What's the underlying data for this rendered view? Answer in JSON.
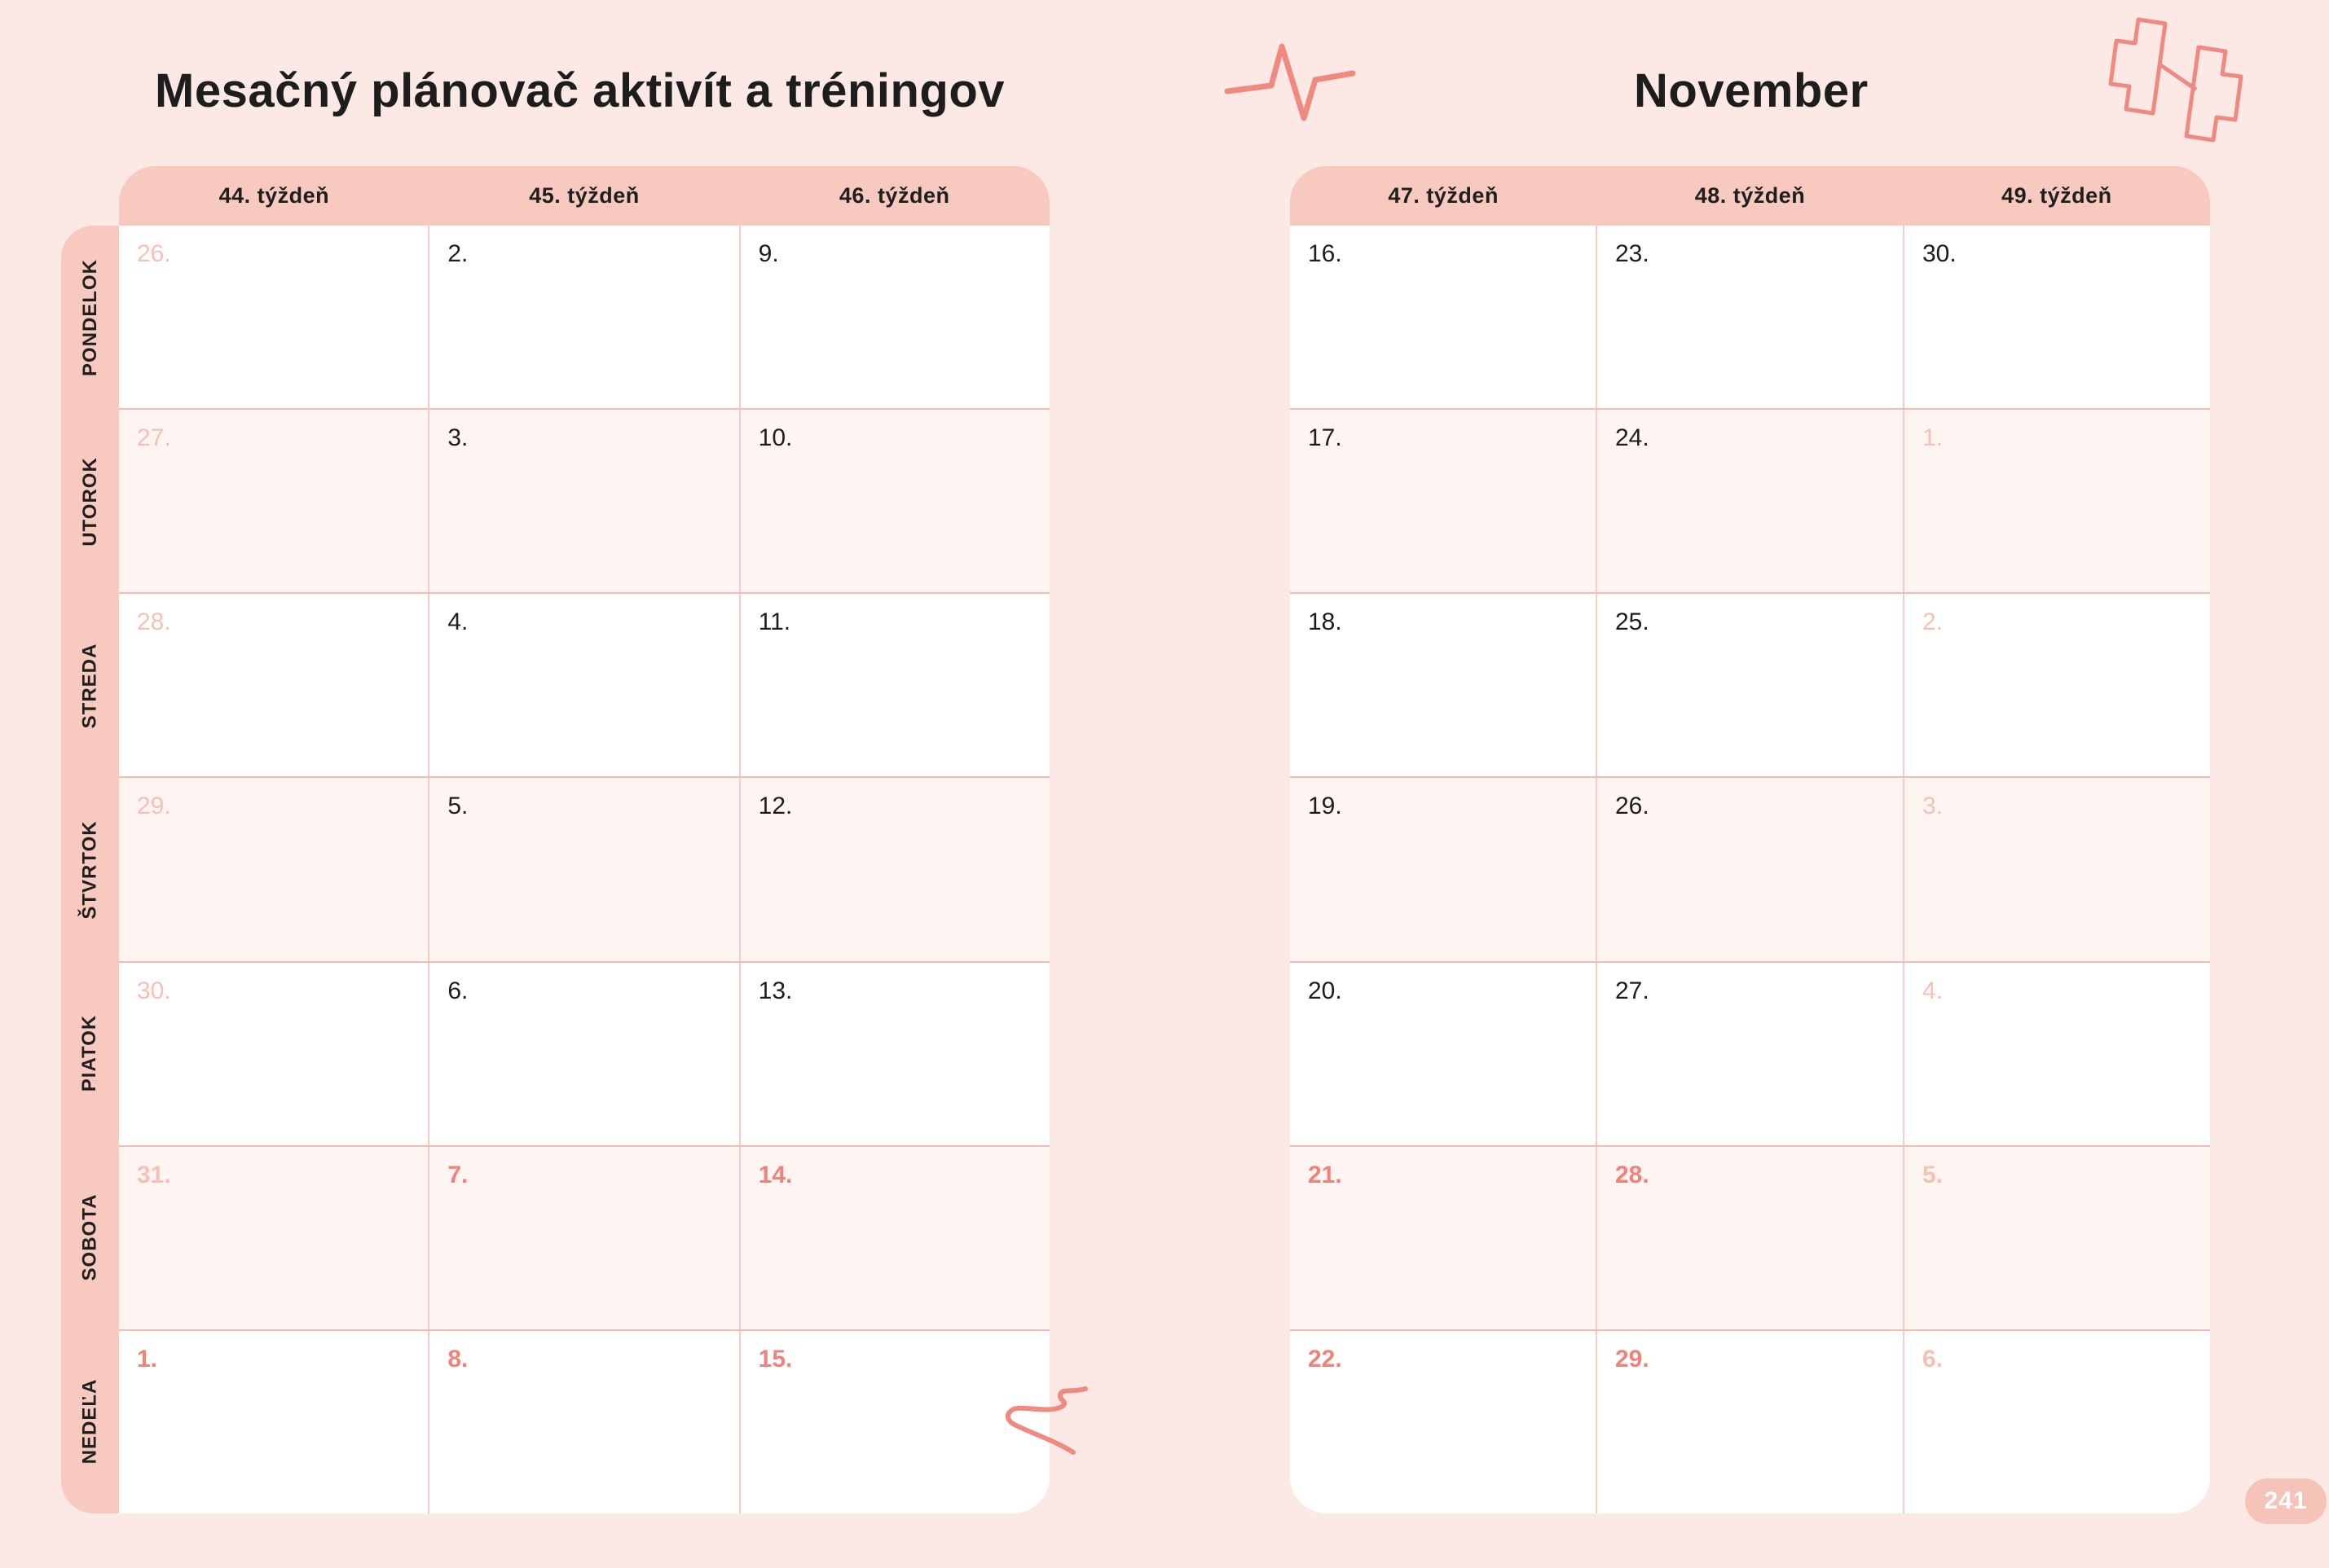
{
  "page": {
    "title": "Mesačný plánovač aktivít a tréningov",
    "month": "November",
    "page_number": "241"
  },
  "days": [
    "PONDELOK",
    "UTOROK",
    "STREDA",
    "ŠTVRTOK",
    "PIATOK",
    "SOBOTA",
    "NEDEĽA"
  ],
  "left_calendar": {
    "week_headers": [
      "44. týždeň",
      "45. týždeň",
      "46. týždeň"
    ],
    "rows": [
      {
        "day": "PONDELOK",
        "cells": [
          {
            "date": "26.",
            "style": "muted"
          },
          {
            "date": "2.",
            "style": "normal"
          },
          {
            "date": "9.",
            "style": "normal"
          }
        ]
      },
      {
        "day": "UTOROK",
        "cells": [
          {
            "date": "27.",
            "style": "muted"
          },
          {
            "date": "3.",
            "style": "normal"
          },
          {
            "date": "10.",
            "style": "normal"
          }
        ]
      },
      {
        "day": "STREDA",
        "cells": [
          {
            "date": "28.",
            "style": "muted"
          },
          {
            "date": "4.",
            "style": "normal"
          },
          {
            "date": "11.",
            "style": "normal"
          }
        ]
      },
      {
        "day": "ŠTVRTOK",
        "cells": [
          {
            "date": "29.",
            "style": "muted"
          },
          {
            "date": "5.",
            "style": "normal"
          },
          {
            "date": "12.",
            "style": "normal"
          }
        ]
      },
      {
        "day": "PIATOK",
        "cells": [
          {
            "date": "30.",
            "style": "muted"
          },
          {
            "date": "6.",
            "style": "normal"
          },
          {
            "date": "13.",
            "style": "normal"
          }
        ]
      },
      {
        "day": "SOBOTA",
        "cells": [
          {
            "date": "31.",
            "style": "muted-bold"
          },
          {
            "date": "7.",
            "style": "accent"
          },
          {
            "date": "14.",
            "style": "accent"
          }
        ]
      },
      {
        "day": "NEDEĽA",
        "cells": [
          {
            "date": "1.",
            "style": "accent"
          },
          {
            "date": "8.",
            "style": "accent"
          },
          {
            "date": "15.",
            "style": "accent"
          }
        ]
      }
    ]
  },
  "right_calendar": {
    "week_headers": [
      "47. týždeň",
      "48. týždeň",
      "49. týždeň"
    ],
    "rows": [
      {
        "day": "PONDELOK",
        "cells": [
          {
            "date": "16.",
            "style": "normal"
          },
          {
            "date": "23.",
            "style": "normal"
          },
          {
            "date": "30.",
            "style": "normal"
          }
        ]
      },
      {
        "day": "UTOROK",
        "cells": [
          {
            "date": "17.",
            "style": "normal"
          },
          {
            "date": "24.",
            "style": "normal"
          },
          {
            "date": "1.",
            "style": "muted"
          }
        ]
      },
      {
        "day": "STREDA",
        "cells": [
          {
            "date": "18.",
            "style": "normal"
          },
          {
            "date": "25.",
            "style": "normal"
          },
          {
            "date": "2.",
            "style": "muted"
          }
        ]
      },
      {
        "day": "ŠTVRTOK",
        "cells": [
          {
            "date": "19.",
            "style": "normal"
          },
          {
            "date": "26.",
            "style": "normal"
          },
          {
            "date": "3.",
            "style": "muted"
          }
        ]
      },
      {
        "day": "PIATOK",
        "cells": [
          {
            "date": "20.",
            "style": "normal"
          },
          {
            "date": "27.",
            "style": "normal"
          },
          {
            "date": "4.",
            "style": "muted"
          }
        ]
      },
      {
        "day": "SOBOTA",
        "cells": [
          {
            "date": "21.",
            "style": "accent"
          },
          {
            "date": "28.",
            "style": "accent"
          },
          {
            "date": "5.",
            "style": "muted-bold"
          }
        ]
      },
      {
        "day": "NEDEĽA",
        "cells": [
          {
            "date": "22.",
            "style": "accent"
          },
          {
            "date": "29.",
            "style": "accent"
          },
          {
            "date": "6.",
            "style": "muted-bold"
          }
        ]
      }
    ]
  },
  "icons": [
    "heartbeat-icon",
    "dumbbell-icon",
    "squiggle-icon"
  ],
  "colors": {
    "page_bg": "#fce8e4",
    "band": "#f8c9bf",
    "cell_alt": "#fef4f2",
    "cell_white": "#ffffff",
    "line_h": "#f4bcb1",
    "line_v": "#f7cdc3",
    "text": "#1d1d1d",
    "muted": "#f7c0b5",
    "accent": "#ef8379",
    "icon": "#f08a80",
    "badge": "#f6c3b9",
    "badge_text": "#ffffff"
  }
}
